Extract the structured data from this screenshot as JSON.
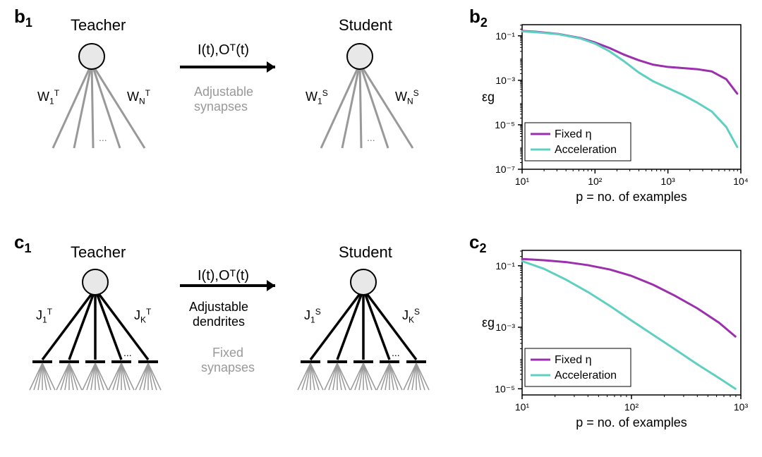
{
  "panel_b1": {
    "label_main": "b",
    "label_sub": "1",
    "teacher_title": "Teacher",
    "student_title": "Student",
    "arrow_text": "I(t),Oᵀ(t)",
    "subtext": "Adjustable\nsynapses",
    "teacher_w1": "W",
    "teacher_w1_sub": "1",
    "teacher_w1_sup": "T",
    "teacher_wn": "W",
    "teacher_wn_sub": "N",
    "teacher_wn_sup": "T",
    "student_w1": "W",
    "student_w1_sub": "1",
    "student_w1_sup": "S",
    "student_wn": "W",
    "student_wn_sub": "N",
    "student_wn_sup": "S",
    "dots": "..."
  },
  "panel_c1": {
    "label_main": "c",
    "label_sub": "1",
    "teacher_title": "Teacher",
    "student_title": "Student",
    "arrow_text": "I(t),Oᵀ(t)",
    "subtext1": "Adjustable\ndendrites",
    "subtext2": "Fixed\nsynapses",
    "teacher_j1": "J",
    "teacher_j1_sub": "1",
    "teacher_j1_sup": "T",
    "teacher_jk": "J",
    "teacher_jk_sub": "K",
    "teacher_jk_sup": "T",
    "student_j1": "J",
    "student_j1_sub": "1",
    "student_j1_sup": "S",
    "student_jk": "J",
    "student_jk_sub": "K",
    "student_jk_sup": "S",
    "dots": "..."
  },
  "panel_b2": {
    "label_main": "b",
    "label_sub": "2",
    "ylabel": "εg",
    "xlabel": "p = no. of examples",
    "x_ticks": [
      1,
      2,
      3,
      4
    ],
    "x_tick_labels": [
      "10¹",
      "10²",
      "10³",
      "10⁴"
    ],
    "y_ticks": [
      -7,
      -5,
      -3,
      -1
    ],
    "y_tick_labels": [
      "10⁻⁷",
      "10⁻⁵",
      "10⁻³",
      "10⁻¹"
    ],
    "xlim": [
      1,
      4
    ],
    "ylim": [
      -7,
      -0.5
    ],
    "series": [
      {
        "name": "Fixed η",
        "color": "#9b2fae",
        "width": 3,
        "points": [
          [
            1,
            -0.78
          ],
          [
            1.2,
            -0.82
          ],
          [
            1.5,
            -0.92
          ],
          [
            1.8,
            -1.1
          ],
          [
            2.0,
            -1.3
          ],
          [
            2.2,
            -1.55
          ],
          [
            2.4,
            -1.85
          ],
          [
            2.6,
            -2.1
          ],
          [
            2.8,
            -2.3
          ],
          [
            3.0,
            -2.4
          ],
          [
            3.2,
            -2.45
          ],
          [
            3.4,
            -2.5
          ],
          [
            3.6,
            -2.6
          ],
          [
            3.8,
            -2.95
          ],
          [
            3.95,
            -3.6
          ]
        ]
      },
      {
        "name": "Acceleration",
        "color": "#5fd0c0",
        "width": 3,
        "points": [
          [
            1,
            -0.8
          ],
          [
            1.2,
            -0.84
          ],
          [
            1.5,
            -0.93
          ],
          [
            1.8,
            -1.12
          ],
          [
            2.0,
            -1.35
          ],
          [
            2.2,
            -1.7
          ],
          [
            2.4,
            -2.15
          ],
          [
            2.6,
            -2.65
          ],
          [
            2.8,
            -3.05
          ],
          [
            3.0,
            -3.35
          ],
          [
            3.2,
            -3.65
          ],
          [
            3.4,
            -4.0
          ],
          [
            3.6,
            -4.4
          ],
          [
            3.8,
            -5.1
          ],
          [
            3.95,
            -6.0
          ]
        ]
      }
    ],
    "legend": {
      "items": [
        "Fixed η",
        "Acceleration"
      ],
      "colors": [
        "#9b2fae",
        "#5fd0c0"
      ],
      "position": "bottom-left"
    }
  },
  "panel_c2": {
    "label_main": "c",
    "label_sub": "2",
    "ylabel": "εg",
    "xlabel": "p = no. of examples",
    "x_ticks": [
      1,
      2,
      3
    ],
    "x_tick_labels": [
      "10¹",
      "10²",
      "10³"
    ],
    "y_ticks": [
      -5,
      -3,
      -1
    ],
    "y_tick_labels": [
      "10⁻⁵",
      "10⁻³",
      "10⁻¹"
    ],
    "xlim": [
      1,
      3
    ],
    "ylim": [
      -5.2,
      -0.5
    ],
    "series": [
      {
        "name": "Fixed η",
        "color": "#9b2fae",
        "width": 3,
        "points": [
          [
            1,
            -0.78
          ],
          [
            1.2,
            -0.82
          ],
          [
            1.4,
            -0.88
          ],
          [
            1.6,
            -0.98
          ],
          [
            1.8,
            -1.12
          ],
          [
            2.0,
            -1.33
          ],
          [
            2.2,
            -1.62
          ],
          [
            2.4,
            -1.98
          ],
          [
            2.6,
            -2.38
          ],
          [
            2.8,
            -2.85
          ],
          [
            2.95,
            -3.3
          ]
        ]
      },
      {
        "name": "Acceleration",
        "color": "#5fd0c0",
        "width": 3,
        "points": [
          [
            1,
            -0.85
          ],
          [
            1.2,
            -1.1
          ],
          [
            1.4,
            -1.45
          ],
          [
            1.6,
            -1.85
          ],
          [
            1.8,
            -2.3
          ],
          [
            2.0,
            -2.78
          ],
          [
            2.2,
            -3.25
          ],
          [
            2.4,
            -3.72
          ],
          [
            2.6,
            -4.2
          ],
          [
            2.8,
            -4.65
          ],
          [
            2.95,
            -5.0
          ]
        ]
      }
    ],
    "legend": {
      "items": [
        "Fixed η",
        "Acceleration"
      ],
      "colors": [
        "#9b2fae",
        "#5fd0c0"
      ],
      "position": "bottom-left"
    }
  },
  "neuron": {
    "soma_fill": "#e8e8e8",
    "soma_stroke": "#000",
    "dendrite_gray": "#999999",
    "dendrite_black": "#000000"
  }
}
